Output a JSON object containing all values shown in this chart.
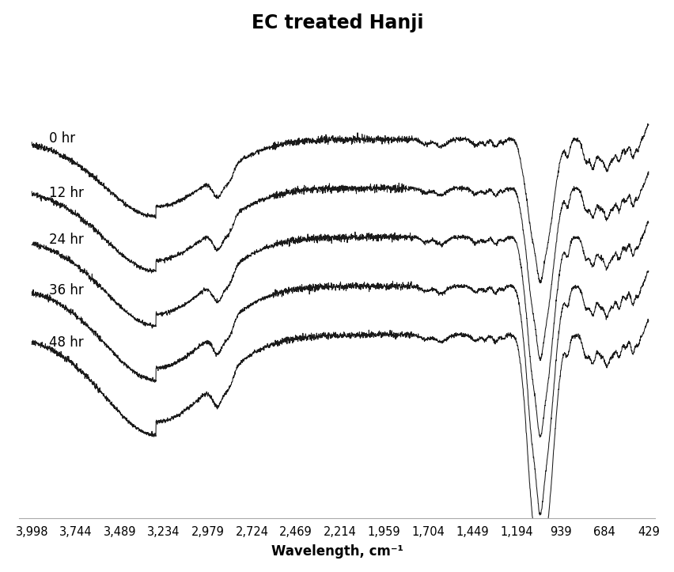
{
  "title": "EC treated Hanji",
  "xlabel": "Wavelength, cm⁻¹",
  "x_ticks": [
    3998,
    3744,
    3489,
    3234,
    2979,
    2724,
    2469,
    2214,
    1959,
    1704,
    1449,
    1194,
    939,
    684,
    429
  ],
  "labels": [
    "0 hr",
    "12 hr",
    "24 hr",
    "36 hr",
    "48 hr"
  ],
  "offsets": [
    1.6,
    1.2,
    0.8,
    0.4,
    0.0
  ],
  "line_color": "#1a1a1a",
  "background_color": "#ffffff",
  "title_fontsize": 17,
  "label_fontsize": 12,
  "tick_fontsize": 10.5
}
